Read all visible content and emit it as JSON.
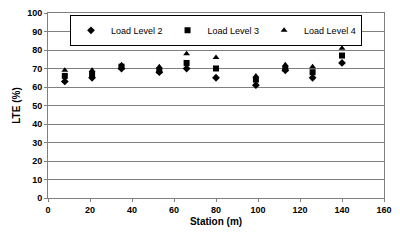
{
  "chart_data": {
    "type": "scatter",
    "x_label": "Station (m)",
    "y_label": "LTE (%)",
    "series": [
      {
        "name": "Load Level 2",
        "color": "#000000",
        "marker": "diamond",
        "x": [
          8,
          21,
          35,
          53,
          66,
          80,
          99,
          113,
          126,
          140
        ],
        "values": [
          63,
          65,
          70,
          68,
          70,
          65,
          61,
          69,
          65,
          73
        ]
      },
      {
        "name": "Load Level 3",
        "color": "#000000",
        "marker": "square",
        "x": [
          8,
          21,
          35,
          53,
          66,
          80,
          99,
          113,
          126,
          140
        ],
        "values": [
          66,
          67,
          71,
          69,
          73,
          70,
          64,
          70,
          68,
          77
        ]
      },
      {
        "name": "Load Level 4",
        "color": "#000000",
        "marker": "triangle",
        "x": [
          8,
          21,
          35,
          53,
          66,
          80,
          99,
          113,
          126,
          140
        ],
        "values": [
          69,
          69,
          72,
          71,
          78,
          76,
          66,
          72,
          71,
          81
        ]
      }
    ],
    "xlim": [
      0,
      160
    ],
    "xticks": [
      0,
      20,
      40,
      60,
      80,
      100,
      120,
      140,
      160
    ],
    "ylim": [
      0,
      100
    ],
    "yticks": [
      0,
      10,
      20,
      30,
      40,
      50,
      60,
      70,
      80,
      90,
      100
    ],
    "grid": true,
    "legend": "top"
  }
}
